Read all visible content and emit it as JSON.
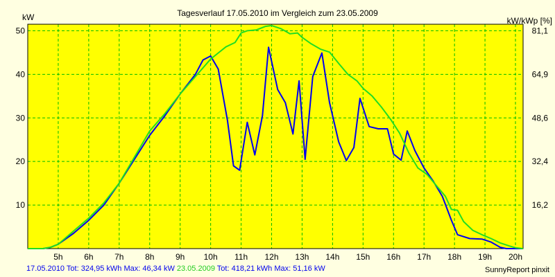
{
  "chart_data": {
    "type": "line",
    "title": "Tagesverlauf 17.05.2010 im Vergleich zum 23.05.2009",
    "ylabel_left": "kW",
    "ylabel_right": "kW/kWp [%]",
    "xlim": [
      4.0,
      20.25
    ],
    "ylim": [
      0,
      51.5
    ],
    "y_ticks_left": [
      10,
      20,
      30,
      40,
      50
    ],
    "y_ticks_right": [
      {
        "v": 10,
        "label": "16,2"
      },
      {
        "v": 20,
        "label": "32,4"
      },
      {
        "v": 30,
        "label": "48,6"
      },
      {
        "v": 40,
        "label": "64,9"
      },
      {
        "v": 50,
        "label": "81,1"
      }
    ],
    "x_ticks": [
      {
        "v": 5,
        "label": "5h"
      },
      {
        "v": 6,
        "label": "6h"
      },
      {
        "v": 7,
        "label": "7h"
      },
      {
        "v": 8,
        "label": "8h"
      },
      {
        "v": 9,
        "label": "9h"
      },
      {
        "v": 10,
        "label": "10h"
      },
      {
        "v": 11,
        "label": "11h"
      },
      {
        "v": 12,
        "label": "12h"
      },
      {
        "v": 13,
        "label": "13h"
      },
      {
        "v": 14,
        "label": "14h"
      },
      {
        "v": 15,
        "label": "15h"
      },
      {
        "v": 16,
        "label": "16h"
      },
      {
        "v": 17,
        "label": "17h"
      },
      {
        "v": 18,
        "label": "18h"
      },
      {
        "v": 19,
        "label": "19h"
      },
      {
        "v": 20,
        "label": "20h"
      }
    ],
    "grid": true,
    "series": [
      {
        "name": "17.05.2010",
        "color": "#0000ee",
        "points": [
          [
            4.0,
            0
          ],
          [
            4.5,
            0
          ],
          [
            4.75,
            0.3
          ],
          [
            5.0,
            1
          ],
          [
            5.5,
            3.5
          ],
          [
            6.0,
            6.5
          ],
          [
            6.5,
            10
          ],
          [
            7.0,
            15
          ],
          [
            7.5,
            20.5
          ],
          [
            8.0,
            26
          ],
          [
            8.5,
            30.5
          ],
          [
            9.0,
            35.5
          ],
          [
            9.5,
            40
          ],
          [
            9.75,
            43.3
          ],
          [
            10.0,
            44.2
          ],
          [
            10.25,
            41.2
          ],
          [
            10.55,
            29.5
          ],
          [
            10.75,
            19
          ],
          [
            10.95,
            18
          ],
          [
            11.2,
            29
          ],
          [
            11.45,
            21.5
          ],
          [
            11.7,
            30.5
          ],
          [
            11.9,
            46.2
          ],
          [
            12.2,
            36.5
          ],
          [
            12.45,
            33.5
          ],
          [
            12.7,
            26.3
          ],
          [
            12.9,
            38.5
          ],
          [
            13.1,
            20.5
          ],
          [
            13.35,
            39.5
          ],
          [
            13.65,
            44.9
          ],
          [
            13.9,
            33.5
          ],
          [
            14.2,
            24.5
          ],
          [
            14.45,
            20.2
          ],
          [
            14.7,
            23.2
          ],
          [
            14.9,
            34.5
          ],
          [
            15.2,
            28
          ],
          [
            15.5,
            27.5
          ],
          [
            15.8,
            27.5
          ],
          [
            16.0,
            21.7
          ],
          [
            16.25,
            20.3
          ],
          [
            16.45,
            27
          ],
          [
            16.7,
            22.5
          ],
          [
            17.0,
            18.5
          ],
          [
            17.3,
            15.5
          ],
          [
            17.6,
            12
          ],
          [
            17.9,
            6.5
          ],
          [
            18.1,
            3.2
          ],
          [
            18.5,
            2.3
          ],
          [
            18.9,
            2.2
          ],
          [
            19.2,
            1.5
          ],
          [
            19.5,
            0.3
          ],
          [
            19.7,
            0
          ],
          [
            20.25,
            0
          ]
        ]
      },
      {
        "name": "23.05.2009",
        "color": "#22dd22",
        "points": [
          [
            4.0,
            0
          ],
          [
            4.5,
            0
          ],
          [
            4.75,
            0.3
          ],
          [
            5.0,
            1
          ],
          [
            5.5,
            4
          ],
          [
            6.0,
            7
          ],
          [
            6.5,
            10.5
          ],
          [
            7.0,
            15
          ],
          [
            7.5,
            21
          ],
          [
            8.0,
            27
          ],
          [
            8.5,
            31
          ],
          [
            9.0,
            35.5
          ],
          [
            9.5,
            39.5
          ],
          [
            10.0,
            43.5
          ],
          [
            10.25,
            44.9
          ],
          [
            10.5,
            46.3
          ],
          [
            10.8,
            47.3
          ],
          [
            11.0,
            49.5
          ],
          [
            11.2,
            50
          ],
          [
            11.5,
            50.2
          ],
          [
            11.8,
            51
          ],
          [
            12.0,
            51.2
          ],
          [
            12.3,
            50.5
          ],
          [
            12.6,
            49.3
          ],
          [
            12.85,
            49.5
          ],
          [
            13.0,
            48.5
          ],
          [
            13.3,
            47
          ],
          [
            13.6,
            45.8
          ],
          [
            13.9,
            45.1
          ],
          [
            14.2,
            42.5
          ],
          [
            14.5,
            40
          ],
          [
            14.8,
            38.5
          ],
          [
            15.0,
            36.8
          ],
          [
            15.3,
            35
          ],
          [
            15.6,
            32.5
          ],
          [
            15.9,
            29.7
          ],
          [
            16.2,
            26.5
          ],
          [
            16.5,
            22
          ],
          [
            16.8,
            18.5
          ],
          [
            17.1,
            17
          ],
          [
            17.4,
            14.5
          ],
          [
            17.7,
            12
          ],
          [
            17.9,
            9
          ],
          [
            18.1,
            8.8
          ],
          [
            18.3,
            6.2
          ],
          [
            18.6,
            4.2
          ],
          [
            18.9,
            3.2
          ],
          [
            19.2,
            2.3
          ],
          [
            19.5,
            1.3
          ],
          [
            19.8,
            0.6
          ],
          [
            20.0,
            0.2
          ],
          [
            20.25,
            0
          ]
        ]
      }
    ]
  },
  "footer": {
    "s1_date": "17.05.2010",
    "s1_stats": " Tot: 324,95 kWh Max: 46,34 kW ",
    "s2_date": "23.05.2009",
    "s2_stats": " Tot: 418,21 kWh Max: 51,16 kW",
    "credit": "SunnyReport pinxit"
  },
  "colors": {
    "plot_bg": "#ffff00",
    "grid": "#00bb00",
    "border": "#000000",
    "background": "#ffffe1"
  }
}
